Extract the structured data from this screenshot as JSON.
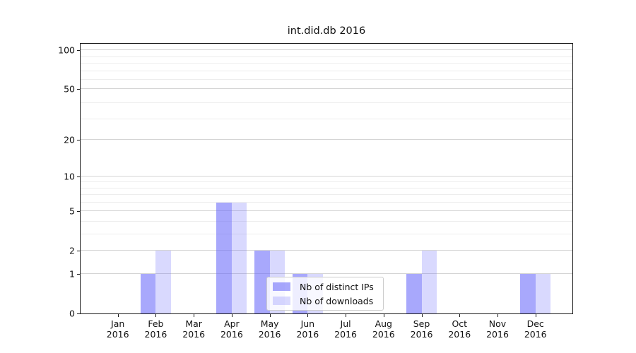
{
  "chart_data": {
    "type": "bar",
    "title": "int.did.db 2016",
    "scale": "log1p",
    "grid": true,
    "categories": [
      "Jan",
      "Feb",
      "Mar",
      "Apr",
      "May",
      "Jun",
      "Jul",
      "Aug",
      "Sep",
      "Oct",
      "Nov",
      "Dec"
    ],
    "category_year": "2016",
    "series": [
      {
        "name": "Nb of distinct IPs",
        "color": "#6969fa",
        "alpha": 0.58,
        "values": [
          0,
          1,
          0,
          6,
          2,
          1,
          0,
          0,
          1,
          0,
          0,
          1
        ]
      },
      {
        "name": "Nb of downloads",
        "color": "#6969fa",
        "alpha": 0.25,
        "values": [
          0,
          2,
          0,
          6,
          2,
          1,
          0,
          0,
          2,
          0,
          0,
          1
        ]
      }
    ],
    "yticks": [
      0,
      1,
      2,
      5,
      10,
      20,
      50,
      100
    ],
    "ylim": [
      0,
      110
    ],
    "legend_position": "lower center",
    "colors": {
      "bar_base": "#6969fa",
      "major_grid": "#d4d4d4",
      "minor_grid": "#ededed",
      "spine": "#1a1a1a",
      "legend_border": "#cccccc"
    }
  }
}
